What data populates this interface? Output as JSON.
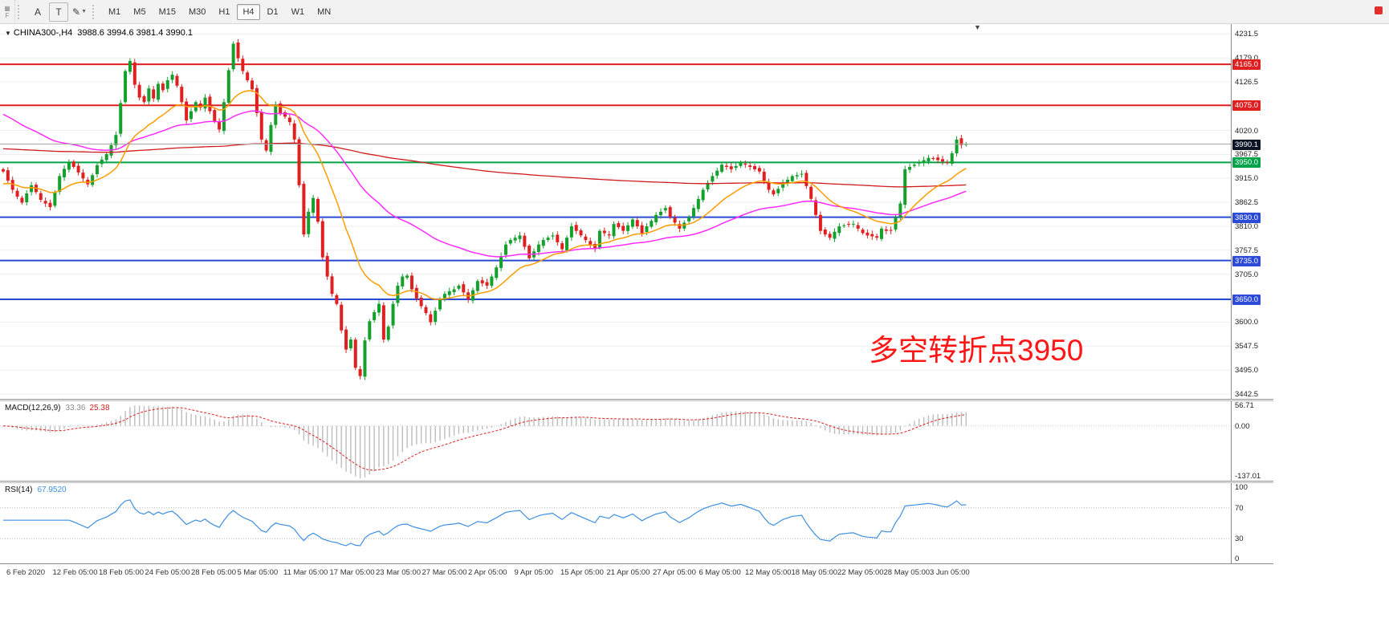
{
  "toolbar": {
    "dock_tab": "F",
    "tools": [
      {
        "label": "A"
      },
      {
        "label": "T"
      },
      {
        "label": "✎"
      }
    ],
    "timeframes": [
      "M1",
      "M5",
      "M15",
      "M30",
      "H1",
      "H4",
      "D1",
      "W1",
      "MN"
    ],
    "selected_timeframe": "H4"
  },
  "chart": {
    "symbol": "CHINA300-,H4",
    "ohlc": "3988.6 3994.6 3981.4 3990.1",
    "current_price": "3990.1",
    "annotation": "多空转折点3950",
    "hlines": [
      {
        "price": 4165.0,
        "label": "4165.0",
        "color": "#e02020"
      },
      {
        "price": 4075.0,
        "label": "4075.0",
        "color": "#e02020"
      },
      {
        "price": 3950.0,
        "label": "3950.0",
        "color": "#00a347"
      },
      {
        "price": 3830.0,
        "label": "3830.0",
        "color": "#2b4bd7"
      },
      {
        "price": 3735.0,
        "label": "3735.0",
        "color": "#2b4bd7"
      },
      {
        "price": 3650.0,
        "label": "3650.0",
        "color": "#2b4bd7"
      }
    ]
  },
  "price_axis": {
    "labels": [
      "4231.5",
      "4179.0",
      "4126.5",
      "4020.0",
      "3967.5",
      "3915.0",
      "3862.5",
      "3810.0",
      "3757.5",
      "3705.0",
      "3600.0",
      "3547.5",
      "3495.0",
      "3442.5"
    ],
    "label_values": [
      4231.5,
      4179.0,
      4126.5,
      4020.0,
      3967.5,
      3915.0,
      3862.5,
      3810.0,
      3757.5,
      3705.0,
      3600.0,
      3547.5,
      3495.0,
      3442.5
    ],
    "gridlines": [
      4231.5,
      4179.0,
      4126.5,
      4074.0,
      4020.0,
      3967.5,
      3915.0,
      3862.5,
      3810.0,
      3757.5,
      3705.0,
      3652.5,
      3600.0,
      3547.5,
      3495.0,
      3442.5
    ]
  },
  "macd": {
    "label": "MACD(12,26,9)",
    "main_value": "33.36",
    "signal_value": "25.38",
    "axis_labels": [
      "56.71",
      "0.00",
      "-137.01"
    ],
    "axis_values": [
      56.71,
      0.0,
      -137.01
    ]
  },
  "rsi": {
    "label": "RSI(14)",
    "value": "67.9520",
    "axis_labels": [
      "100",
      "70",
      "30",
      "0"
    ],
    "axis_values": [
      100,
      70,
      30,
      0
    ],
    "levels": [
      70,
      30
    ]
  },
  "time_axis": [
    "6 Feb 2020",
    "12 Feb 05:00",
    "18 Feb 05:00",
    "24 Feb 05:00",
    "28 Feb 05:00",
    "5 Mar 05:00",
    "11 Mar 05:00",
    "17 Mar 05:00",
    "23 Mar 05:00",
    "27 Mar 05:00",
    "2 Apr 05:00",
    "9 Apr 05:00",
    "15 Apr 05:00",
    "21 Apr 05:00",
    "27 Apr 05:00",
    "6 May 05:00",
    "12 May 05:00",
    "18 May 05:00",
    "22 May 05:00",
    "28 May 05:00",
    "3 Jun 05:00"
  ],
  "colors": {
    "candle_up": "#14a02c",
    "candle_down": "#e02020",
    "line_red": "#e02020",
    "line_green": "#00a347",
    "line_blue": "#2b4bd7",
    "ma_red": "#cf1d1d",
    "ma_orange": "#ff9c00",
    "ma_magenta": "#ff2bff",
    "macd_hist": "#bdbdbd",
    "macd_signal": "#e02020",
    "rsi_line": "#3e8fe0",
    "grid": "#ededed",
    "price_box_current": "#0c1526",
    "annotation": "#ff1616"
  },
  "chart_data": {
    "type": "candlestick",
    "symbol": "CHINA300-",
    "timeframe": "H4",
    "ylim": [
      3442.5,
      4231.5
    ],
    "x_range": [
      "6 Feb 2020",
      "3 Jun 2020"
    ],
    "last_ohlc": {
      "open": 3988.6,
      "high": 3994.6,
      "low": 3981.4,
      "close": 3990.1
    },
    "closes": [
      3930,
      3910,
      3890,
      3875,
      3862,
      3882,
      3900,
      3885,
      3868,
      3860,
      3852,
      3885,
      3920,
      3936,
      3950,
      3940,
      3928,
      3915,
      3902,
      3922,
      3944,
      3956,
      3968,
      3988,
      4010,
      4080,
      4150,
      4172,
      4120,
      4092,
      4082,
      4112,
      4090,
      4122,
      4108,
      4130,
      4142,
      4118,
      4082,
      4042,
      4062,
      4082,
      4070,
      4092,
      4062,
      4040,
      4022,
      4082,
      4152,
      4210,
      4178,
      4150,
      4130,
      4110,
      4058,
      4000,
      3976,
      4032,
      4076,
      4058,
      4050,
      4038,
      4000,
      3900,
      3792,
      3842,
      3872,
      3820,
      3742,
      3700,
      3662,
      3640,
      3582,
      3540,
      3562,
      3500,
      3482,
      3560,
      3602,
      3622,
      3640,
      3562,
      3590,
      3640,
      3680,
      3700,
      3702,
      3672,
      3652,
      3635,
      3620,
      3600,
      3625,
      3650,
      3662,
      3668,
      3672,
      3680,
      3665,
      3650,
      3670,
      3690,
      3685,
      3680,
      3700,
      3720,
      3745,
      3770,
      3780,
      3785,
      3790,
      3765,
      3740,
      3755,
      3770,
      3780,
      3785,
      3790,
      3775,
      3760,
      3785,
      3810,
      3800,
      3790,
      3780,
      3770,
      3760,
      3800,
      3795,
      3790,
      3815,
      3808,
      3800,
      3812,
      3825,
      3810,
      3795,
      3810,
      3822,
      3835,
      3842,
      3850,
      3830,
      3818,
      3805,
      3818,
      3830,
      3850,
      3870,
      3890,
      3905,
      3920,
      3932,
      3945,
      3940,
      3935,
      3942,
      3950,
      3945,
      3940,
      3935,
      3930,
      3910,
      3890,
      3880,
      3892,
      3905,
      3912,
      3920,
      3922,
      3925,
      3898,
      3870,
      3835,
      3800,
      3792,
      3785,
      3798,
      3810,
      3812,
      3814,
      3815,
      3805,
      3795,
      3790,
      3788,
      3785,
      3805,
      3800,
      3800,
      3830,
      3860,
      3935,
      3940,
      3945,
      3950,
      3955,
      3960,
      3958,
      3955,
      3952,
      3950,
      3970,
      4000,
      3988,
      3990.1
    ]
  }
}
